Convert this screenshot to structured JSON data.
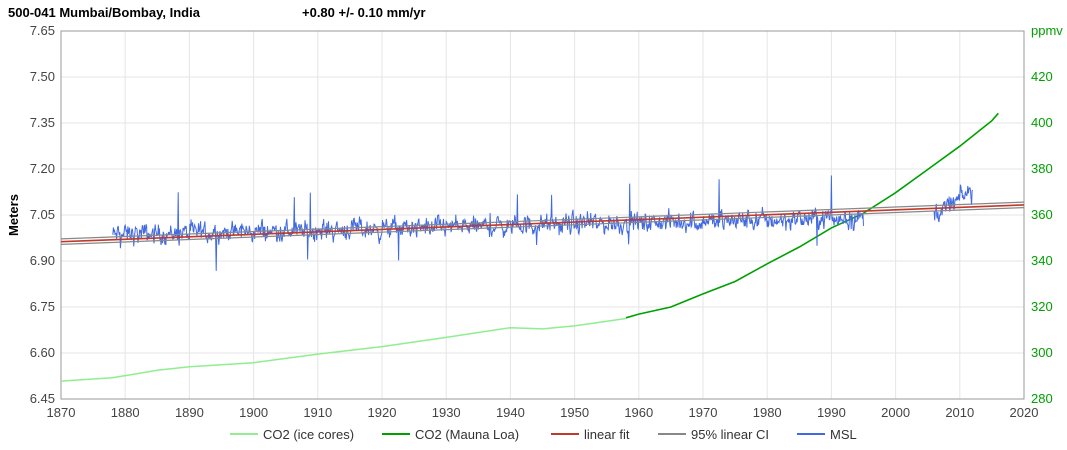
{
  "header": {
    "station": "500-041 Mumbai/Bombay, India",
    "trend": "+0.80 +/- 0.10 mm/yr"
  },
  "chart_data": {
    "type": "line",
    "ylabel": "Meters",
    "y2label": "ppmv",
    "xlim": [
      1870,
      2020
    ],
    "ylim": [
      6.45,
      7.65
    ],
    "y2lim": [
      280,
      440
    ],
    "grid": true,
    "legend_position": "bottom",
    "x_ticks": [
      "1870",
      "1880",
      "1890",
      "1900",
      "1910",
      "1920",
      "1930",
      "1940",
      "1950",
      "1960",
      "1970",
      "1980",
      "1990",
      "2000",
      "2010",
      "2020"
    ],
    "y_ticks": [
      "6.45",
      "6.60",
      "6.75",
      "6.90",
      "7.05",
      "7.20",
      "7.35",
      "7.50",
      "7.65"
    ],
    "y2_ticks": [
      "280",
      "300",
      "320",
      "340",
      "360",
      "380",
      "400",
      "420"
    ],
    "colors": {
      "co2_ice": "#90ee90",
      "co2_mauna": "#00a000",
      "linear_fit": "#c0392b",
      "ci": "#888888",
      "msl": "#4169e1",
      "grid": "#e5e5e5",
      "axis": "#333333",
      "y2_text": "#00a000"
    },
    "series": [
      {
        "name": "CO2 (ice cores)",
        "axis": "right",
        "x": [
          1870,
          1878,
          1885,
          1890,
          1900,
          1910,
          1920,
          1930,
          1940,
          1945,
          1950,
          1958
        ],
        "y": [
          287.8,
          289.2,
          292.5,
          294.0,
          295.8,
          299.5,
          302.8,
          306.8,
          311.0,
          310.5,
          311.8,
          315.0
        ]
      },
      {
        "name": "CO2 (Mauna Loa)",
        "axis": "right",
        "x": [
          1958,
          1960,
          1965,
          1970,
          1975,
          1980,
          1985,
          1990,
          1995,
          2000,
          2005,
          2010,
          2015,
          2016
        ],
        "y": [
          315.3,
          316.9,
          320.0,
          325.7,
          331.1,
          338.8,
          346.1,
          354.4,
          360.8,
          369.7,
          379.8,
          389.9,
          401.0,
          404.2
        ]
      },
      {
        "name": "linear fit",
        "axis": "left",
        "x": [
          1870,
          2020
        ],
        "y": [
          6.963,
          7.083
        ]
      },
      {
        "name": "95% linear CI",
        "axis": "left",
        "x": [
          1870,
          2020
        ],
        "y_upper": [
          6.972,
          7.092
        ],
        "y_lower": [
          6.954,
          7.074
        ]
      },
      {
        "name": "MSL",
        "axis": "left",
        "segments": [
          {
            "x": [
              1878,
              1995
            ],
            "y": [
              6.985,
              7.041
            ]
          },
          {
            "x": [
              2006,
              2012
            ],
            "y": [
              7.05,
              7.13
            ]
          }
        ],
        "ymin": 6.85,
        "ymax": 7.23
      }
    ]
  }
}
